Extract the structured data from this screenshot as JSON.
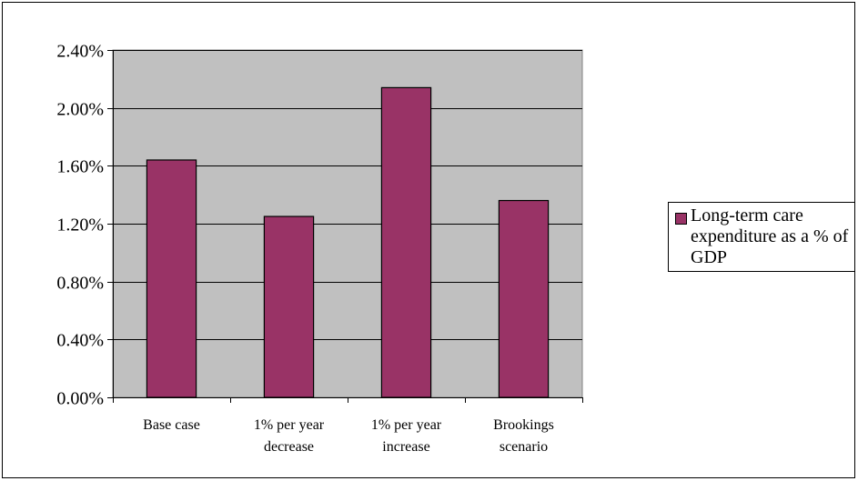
{
  "chart_data": {
    "type": "bar",
    "title": "",
    "xlabel": "",
    "ylabel": "",
    "categories": [
      "Base case",
      "1% per year decrease",
      "1% per year increase",
      "Brookings scenario"
    ],
    "category_lines": [
      [
        "Base case"
      ],
      [
        "1% per year",
        "decrease"
      ],
      [
        "1% per year",
        "increase"
      ],
      [
        "Brookings",
        "scenario"
      ]
    ],
    "series": [
      {
        "name": "Long-term care expenditure as a % of GDP",
        "values": [
          1.64,
          1.25,
          2.14,
          1.36
        ],
        "color": "#993366"
      }
    ],
    "ylim": [
      0,
      2.4
    ],
    "yticks": [
      0,
      0.4,
      0.8,
      1.2,
      1.6,
      2.0,
      2.4
    ],
    "ytick_labels": [
      "0.00%",
      "0.40%",
      "0.80%",
      "1.20%",
      "1.60%",
      "2.00%",
      "2.40%"
    ],
    "grid": true,
    "plot_background": "#c0c0c0",
    "legend_position": "right"
  }
}
